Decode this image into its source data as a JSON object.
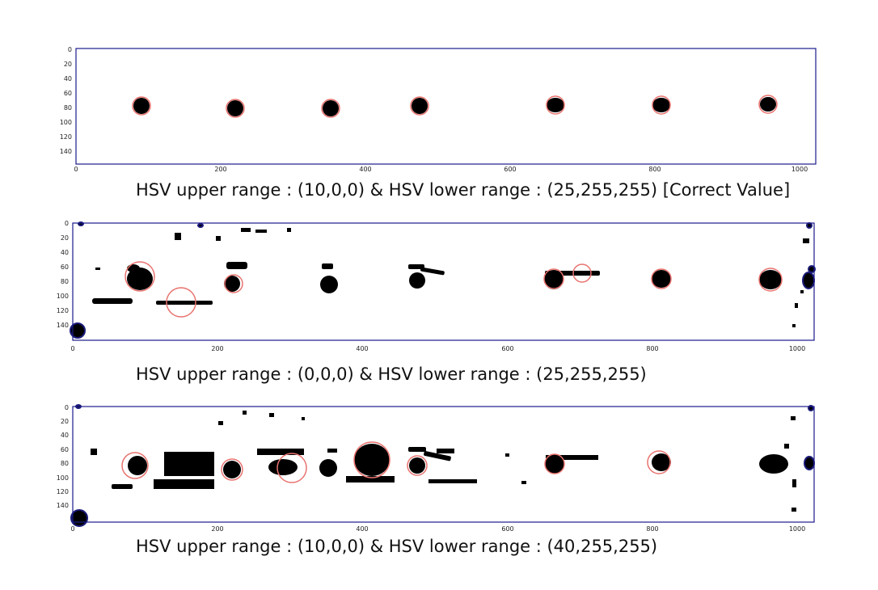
{
  "axes": {
    "x_ticks": [
      "0",
      "200",
      "400",
      "600",
      "800",
      "1000"
    ],
    "y_ticks": [
      "0",
      "20",
      "40",
      "60",
      "80",
      "100",
      "120",
      "140"
    ]
  },
  "colors": {
    "frame": "#1a1a8c",
    "mask": "#000000",
    "circle": "#e8736f",
    "edge_blob": "#1b1b7a"
  },
  "panels": [
    {
      "caption": "HSV upper range : (10,0,0) & HSV lower range : (25,255,255) [Correct Value]"
    },
    {
      "caption": "HSV upper range : (0,0,0) & HSV lower range : (25,255,255)"
    },
    {
      "caption": "HSV upper range : (10,0,0) & HSV lower range : (40,255,255)"
    }
  ]
}
